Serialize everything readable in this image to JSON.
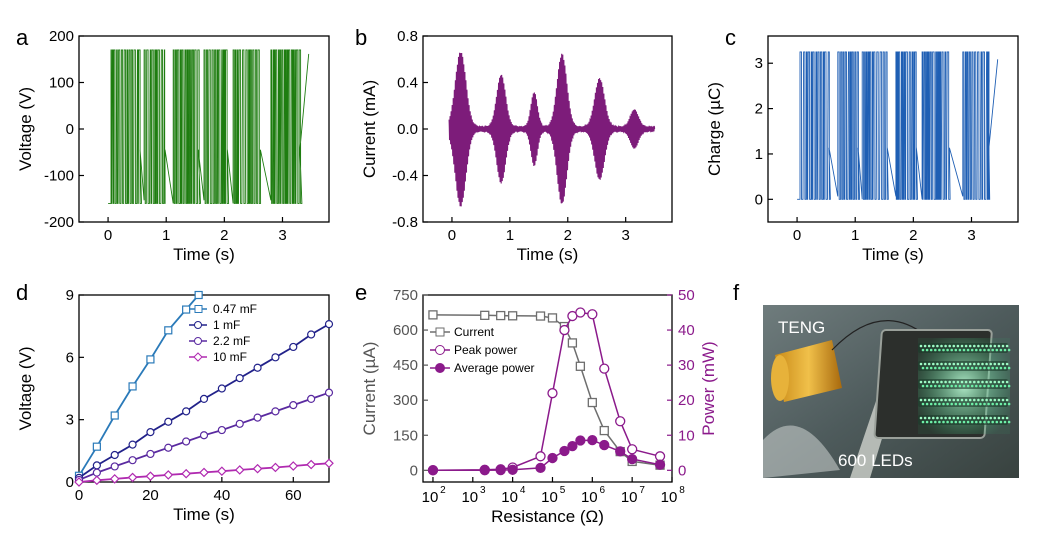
{
  "chart_data": [
    {
      "panel": "a",
      "type": "line",
      "xlabel": "Time (s)",
      "ylabel": "Voltage (V)",
      "xlim": [
        -0.5,
        3.8
      ],
      "ylim": [
        -200,
        200
      ],
      "xticks": [
        "0",
        "1",
        "2",
        "3"
      ],
      "yticks": [
        "-200",
        "-100",
        "0",
        "100",
        "200"
      ],
      "color": "#1e7d10",
      "signal": {
        "kind": "square-pulses",
        "high": 170,
        "low": -160,
        "bursts": [
          [
            0.05,
            0.55
          ],
          [
            0.62,
            0.98
          ],
          [
            1.12,
            1.55
          ],
          [
            1.65,
            2.05
          ],
          [
            2.15,
            2.62
          ],
          [
            2.8,
            3.3
          ]
        ],
        "t_end": 3.45
      }
    },
    {
      "panel": "b",
      "type": "line",
      "xlabel": "Time (s)",
      "ylabel": "Current (mA)",
      "xlim": [
        -0.5,
        3.8
      ],
      "ylim": [
        -0.8,
        0.8
      ],
      "xticks": [
        "0",
        "1",
        "2",
        "3"
      ],
      "yticks": [
        "-0.8",
        "-0.4",
        "0.0",
        "0.4",
        "0.8"
      ],
      "color": "#7d1c7a",
      "bursts": [
        {
          "center": 0.15,
          "amp": 0.65,
          "width": 0.13
        },
        {
          "center": 0.85,
          "amp": 0.45,
          "width": 0.11
        },
        {
          "center": 1.42,
          "amp": 0.3,
          "width": 0.08
        },
        {
          "center": 1.9,
          "amp": 0.63,
          "width": 0.12
        },
        {
          "center": 2.55,
          "amp": 0.42,
          "width": 0.12
        },
        {
          "center": 3.15,
          "amp": 0.15,
          "width": 0.1
        }
      ]
    },
    {
      "panel": "c",
      "type": "line",
      "xlabel": "Time (s)",
      "ylabel": "Charge (µC)",
      "xlim": [
        -0.5,
        3.8
      ],
      "ylim": [
        -0.5,
        3.6
      ],
      "xticks": [
        "0",
        "1",
        "2",
        "3"
      ],
      "yticks": [
        "0",
        "1",
        "2",
        "3"
      ],
      "color": "#1f5fb4",
      "signal": {
        "kind": "square-pulses",
        "high": 3.25,
        "low": 0.0,
        "bursts": [
          [
            0.05,
            0.55
          ],
          [
            0.7,
            1.05
          ],
          [
            1.12,
            1.55
          ],
          [
            1.7,
            2.05
          ],
          [
            2.15,
            2.62
          ],
          [
            2.85,
            3.3
          ]
        ],
        "t_end": 3.45
      }
    },
    {
      "panel": "d",
      "type": "line",
      "xlabel": "Time (s)",
      "ylabel": "Voltage (V)",
      "xlim": [
        0,
        70
      ],
      "ylim": [
        0,
        9
      ],
      "xticks": [
        "0",
        "20",
        "40",
        "60"
      ],
      "yticks": [
        "0",
        "3",
        "6",
        "9"
      ],
      "series": [
        {
          "name": "0.47 mF",
          "color": "#2a7ab9",
          "marker": "square",
          "x": [
            0,
            5,
            10,
            15,
            20,
            25,
            30,
            33.5
          ],
          "y": [
            0.3,
            1.7,
            3.2,
            4.6,
            5.9,
            7.3,
            8.3,
            9.0
          ]
        },
        {
          "name": "1 mF",
          "color": "#22228a",
          "marker": "circle",
          "x": [
            0,
            5,
            10,
            15,
            20,
            25,
            30,
            35,
            40,
            45,
            50,
            55,
            60,
            65,
            70
          ],
          "y": [
            0.2,
            0.8,
            1.3,
            1.8,
            2.4,
            2.9,
            3.4,
            4.0,
            4.5,
            5.0,
            5.5,
            6.0,
            6.5,
            7.1,
            7.6
          ]
        },
        {
          "name": "2.2 mF",
          "color": "#5a2aa0",
          "marker": "circle",
          "x": [
            0,
            5,
            10,
            15,
            20,
            25,
            30,
            35,
            40,
            45,
            50,
            55,
            60,
            65,
            70
          ],
          "y": [
            0.1,
            0.45,
            0.75,
            1.05,
            1.35,
            1.65,
            1.95,
            2.25,
            2.5,
            2.8,
            3.1,
            3.4,
            3.7,
            4.0,
            4.3
          ]
        },
        {
          "name": "10 mF",
          "color": "#b02ab0",
          "marker": "diamond",
          "x": [
            0,
            5,
            10,
            15,
            20,
            25,
            30,
            35,
            40,
            45,
            50,
            55,
            60,
            65,
            70
          ],
          "y": [
            0.0,
            0.08,
            0.15,
            0.22,
            0.28,
            0.34,
            0.4,
            0.46,
            0.52,
            0.58,
            0.64,
            0.7,
            0.77,
            0.84,
            0.9
          ]
        }
      ]
    },
    {
      "panel": "e",
      "type": "line",
      "xlabel": "Resistance (Ω)",
      "ylabel": "Current (µA)",
      "y2label": "Power (mW)",
      "xscale": "log",
      "xlim_exp": [
        1.75,
        8
      ],
      "ylim": [
        -50,
        750
      ],
      "y2lim": [
        -3.333,
        50
      ],
      "xticks": [
        "10",
        "10",
        "10",
        "10",
        "10",
        "10",
        "10"
      ],
      "xtick_exps": [
        "2",
        "3",
        "4",
        "5",
        "6",
        "7",
        "8"
      ],
      "yticks": [
        "0",
        "150",
        "300",
        "450",
        "600",
        "750"
      ],
      "y2ticks": [
        "0",
        "10",
        "20",
        "30",
        "40",
        "50"
      ],
      "x_exponents": [
        2,
        3.3,
        3.7,
        4,
        4.7,
        5,
        5.3,
        5.5,
        5.7,
        6,
        6.3,
        6.7,
        7,
        7.7
      ],
      "series": [
        {
          "name": "Current",
          "axis": "left",
          "color": "#6e6e6e",
          "marker": "square-open",
          "values": [
            665,
            663,
            662,
            661,
            660,
            652,
            615,
            545,
            445,
            290,
            170,
            80,
            38,
            22
          ]
        },
        {
          "name": "Peak power",
          "axis": "right",
          "color": "#8b1a8b",
          "marker": "circle-open",
          "values": [
            0.04,
            0.15,
            0.3,
            0.8,
            4.0,
            22,
            40,
            44,
            45,
            44.5,
            29,
            14,
            6,
            4
          ]
        },
        {
          "name": "Average power",
          "axis": "right",
          "color": "#8b1a8b",
          "marker": "circle-filled",
          "values": [
            0.01,
            0.03,
            0.06,
            0.15,
            0.7,
            3.5,
            5.5,
            6.9,
            8.5,
            8.6,
            7.2,
            5.4,
            3.2,
            1.6
          ]
        }
      ]
    }
  ],
  "panels": {
    "a": "a",
    "b": "b",
    "c": "c",
    "d": "d",
    "e": "e",
    "f": "f"
  },
  "photo": {
    "teng_label": "TENG",
    "led_label": "600 LEDs"
  },
  "colors": {
    "photo_bg": "#5b6a6c",
    "led_green": "#7cf7b3"
  }
}
